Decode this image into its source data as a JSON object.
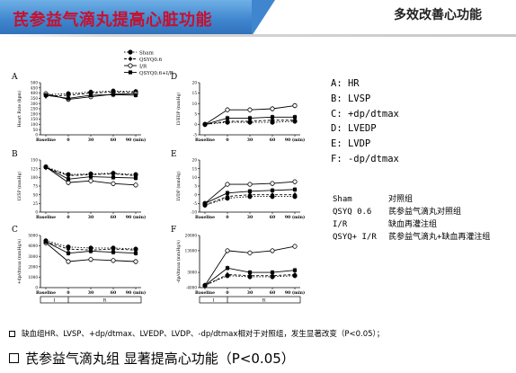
{
  "header": {
    "title": "芪参益气滴丸提高心脏功能",
    "subtitle": "多效改善心功能",
    "colors": {
      "band": "#3f86cf",
      "title": "#c8102e"
    }
  },
  "legend": {
    "entries": [
      {
        "label": "Sham",
        "marker": "filled-circle",
        "dash": "dotted"
      },
      {
        "label": "QSYQ0.6",
        "marker": "filled-diamond",
        "dash": "dashed"
      },
      {
        "label": "I/R",
        "marker": "open-circle",
        "dash": "solid"
      },
      {
        "label": "QSYQ0.6+I/R",
        "marker": "filled-square",
        "dash": "solid"
      }
    ]
  },
  "chart_data": [
    {
      "panel": "A",
      "type": "line",
      "ylabel": "Heart Rate (bpm)",
      "ylim": [
        0,
        500
      ],
      "yticks": [
        0,
        50,
        100,
        150,
        200,
        250,
        300,
        350,
        400,
        450,
        500
      ],
      "x": [
        "Baseline",
        "0",
        "30",
        "60",
        "90 (min)"
      ],
      "series": [
        {
          "name": "Sham",
          "values": [
            385,
            395,
            410,
            420,
            415
          ]
        },
        {
          "name": "QSYQ0.6",
          "values": [
            370,
            380,
            400,
            410,
            405
          ]
        },
        {
          "name": "I/R",
          "values": [
            395,
            340,
            365,
            390,
            395
          ]
        },
        {
          "name": "QSYQ0.6+I/R",
          "values": [
            380,
            350,
            380,
            385,
            380
          ]
        }
      ]
    },
    {
      "panel": "B",
      "type": "line",
      "ylabel": "LVSP (mmHg)",
      "ylim": [
        0,
        150
      ],
      "yticks": [
        0,
        25,
        50,
        75,
        100,
        125,
        150
      ],
      "x": [
        "Baseline",
        "0",
        "30",
        "60",
        "90 (min)"
      ],
      "series": [
        {
          "name": "Sham",
          "values": [
            130,
            108,
            110,
            112,
            108
          ]
        },
        {
          "name": "QSYQ0.6",
          "values": [
            128,
            105,
            108,
            110,
            105
          ]
        },
        {
          "name": "I/R",
          "values": [
            130,
            85,
            90,
            82,
            78
          ]
        },
        {
          "name": "QSYQ0.6+I/R",
          "values": [
            130,
            95,
            102,
            100,
            98
          ]
        }
      ]
    },
    {
      "panel": "C",
      "type": "line",
      "ylabel": "+dp/dtmax (mmHg/s)",
      "ylim": [
        0,
        5000
      ],
      "yticks": [
        0,
        1000,
        2000,
        3000,
        4000,
        5000
      ],
      "x": [
        "Baseline",
        "0",
        "30",
        "60",
        "90 (min)"
      ],
      "series": [
        {
          "name": "Sham",
          "values": [
            4500,
            3900,
            3800,
            3800,
            3700
          ]
        },
        {
          "name": "QSYQ0.6",
          "values": [
            4400,
            3700,
            3600,
            3700,
            3600
          ]
        },
        {
          "name": "I/R",
          "values": [
            4300,
            2500,
            2700,
            2600,
            2500
          ]
        },
        {
          "name": "QSYQ0.6+I/R",
          "values": [
            4400,
            3300,
            3500,
            3400,
            3300
          ]
        }
      ]
    },
    {
      "panel": "D",
      "type": "line",
      "ylabel": "LVEDP (mmHg)",
      "ylim": [
        -5,
        20
      ],
      "yticks": [
        -5,
        0,
        5,
        10,
        15,
        20
      ],
      "x": [
        "Baseline",
        "0",
        "30",
        "60",
        "90 (min)"
      ],
      "series": [
        {
          "name": "Sham",
          "values": [
            0,
            1,
            1,
            1,
            1.5
          ]
        },
        {
          "name": "QSYQ0.6",
          "values": [
            0,
            1.5,
            1.5,
            2,
            2
          ]
        },
        {
          "name": "I/R",
          "values": [
            0,
            7,
            7,
            7.5,
            9
          ]
        },
        {
          "name": "QSYQ0.6+I/R",
          "values": [
            0,
            3,
            3,
            3.5,
            3.5
          ]
        }
      ]
    },
    {
      "panel": "E",
      "type": "line",
      "ylabel": "LVDP (mmHg)",
      "ylim": [
        -10,
        20
      ],
      "yticks": [
        -10,
        -5,
        0,
        5,
        10,
        15,
        20
      ],
      "x": [
        "Baseline",
        "0",
        "30",
        "60",
        "90 (min)"
      ],
      "series": [
        {
          "name": "Sham",
          "values": [
            -6,
            -2,
            -1,
            -1,
            -1
          ]
        },
        {
          "name": "QSYQ0.6",
          "values": [
            -6,
            -1,
            0,
            0,
            0
          ]
        },
        {
          "name": "I/R",
          "values": [
            -5,
            6,
            6,
            6.5,
            7.5
          ]
        },
        {
          "name": "QSYQ0.6+I/R",
          "values": [
            -5,
            1,
            2,
            2.5,
            3
          ]
        }
      ]
    },
    {
      "panel": "F",
      "type": "line",
      "ylabel": "-dp/dtmax (mmHg/s)",
      "ylim": [
        -4000,
        20000
      ],
      "yticks": [
        -4000,
        3000,
        13000,
        20000
      ],
      "x": [
        "Baseline",
        "0",
        "30",
        "60",
        "90 (min)"
      ],
      "series": [
        {
          "name": "Sham",
          "values": [
            -3000,
            1500,
            1000,
            1000,
            1500
          ]
        },
        {
          "name": "QSYQ0.6",
          "values": [
            -3000,
            2000,
            1500,
            1500,
            2000
          ]
        },
        {
          "name": "I/R",
          "values": [
            -3000,
            13000,
            12000,
            13000,
            15000
          ]
        },
        {
          "name": "QSYQ0.6+I/R",
          "values": [
            -3000,
            5000,
            3000,
            3000,
            4000
          ]
        }
      ]
    }
  ],
  "phase_bar": {
    "labels": [
      "I",
      "R"
    ]
  },
  "abbreviations": [
    {
      "text": "A: HR"
    },
    {
      "text": "B: LVSP"
    },
    {
      "text": "C: +dp/dtmax"
    },
    {
      "text": "D: LVEDP"
    },
    {
      "text": "E: LVDP"
    },
    {
      "text": "F: -dp/dtmax"
    }
  ],
  "groups": [
    {
      "code": "Sham",
      "desc": "对照组"
    },
    {
      "code": "QSYQ 0.6",
      "desc": "芪参益气滴丸对照组"
    },
    {
      "code": "I/R",
      "desc": "缺血再灌注组"
    },
    {
      "code": "QSYQ+ I/R",
      "desc": "芪参益气滴丸+缺血再灌注组"
    }
  ],
  "notes": {
    "small": "缺血组HR、LVSP、+dp/dtmax、LVEDP、LVDP、-dp/dtmax相对于对照组，发生显著改变（P<0.05）；",
    "big": "芪参益气滴丸组 显著提高心功能（P<0.05）"
  }
}
